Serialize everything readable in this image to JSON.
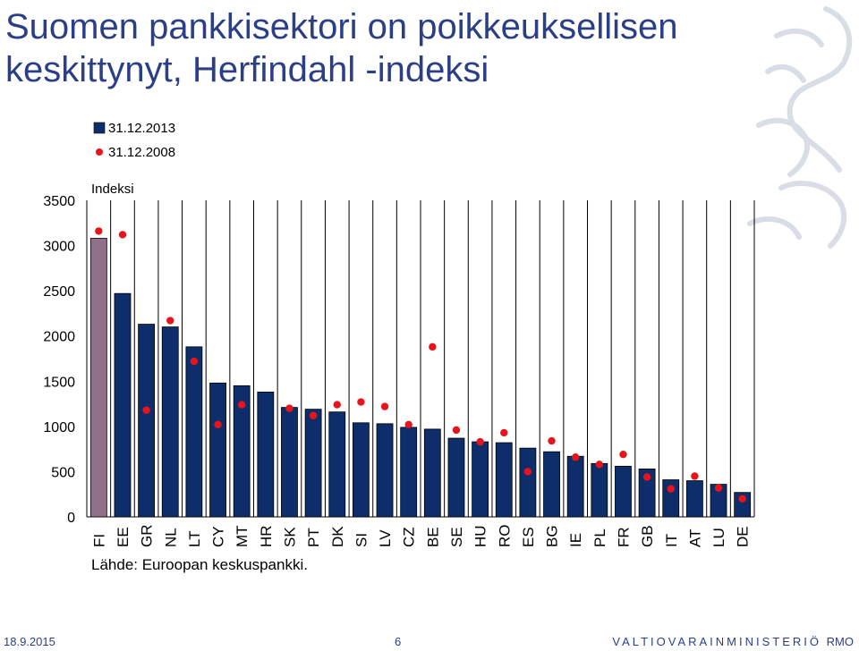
{
  "slide": {
    "title": "Suomen pankkisektori on poikkeuksellisen keskittynyt, Herfindahl -indeksi",
    "source": "Lähde: Euroopan keskuspankki.",
    "footer_date": "18.9.2015",
    "footer_page": "6",
    "footer_org": "VALTIOVARAINMINISTERIÖ",
    "footer_org_short": "RMO"
  },
  "colors": {
    "title": "#2b3f86",
    "bar": "#0d2d6b",
    "bar_highlight": "#8f7189",
    "dot": "#e8141c",
    "grid": "#000000"
  },
  "chart_data": {
    "type": "bar",
    "ylabel": "Indeksi",
    "ylim": [
      0,
      3500
    ],
    "yticks": [
      0,
      500,
      1000,
      1500,
      2000,
      2500,
      3000,
      3500
    ],
    "grid": "vertical",
    "legend_position": "top-left",
    "categories": [
      "FI",
      "EE",
      "GR",
      "NL",
      "LT",
      "CY",
      "MT",
      "HR",
      "SK",
      "PT",
      "DK",
      "SI",
      "LV",
      "CZ",
      "BE",
      "SE",
      "HU",
      "RO",
      "ES",
      "BG",
      "IE",
      "PL",
      "FR",
      "GB",
      "IT",
      "AT",
      "LU",
      "DE"
    ],
    "highlight_category": "FI",
    "series": [
      {
        "name": "31.12.2013",
        "type": "bar",
        "values": [
          3080,
          2470,
          2130,
          2100,
          1880,
          1480,
          1450,
          1380,
          1210,
          1190,
          1160,
          1040,
          1030,
          990,
          970,
          870,
          830,
          820,
          760,
          720,
          670,
          590,
          560,
          530,
          410,
          400,
          360,
          270
        ]
      },
      {
        "name": "31.12.2008",
        "type": "scatter",
        "values": [
          3160,
          3120,
          1180,
          2170,
          1720,
          1020,
          1240,
          null,
          1200,
          1120,
          1240,
          1270,
          1220,
          1020,
          1880,
          960,
          830,
          930,
          500,
          840,
          660,
          580,
          690,
          440,
          310,
          450,
          320,
          200
        ]
      }
    ]
  }
}
